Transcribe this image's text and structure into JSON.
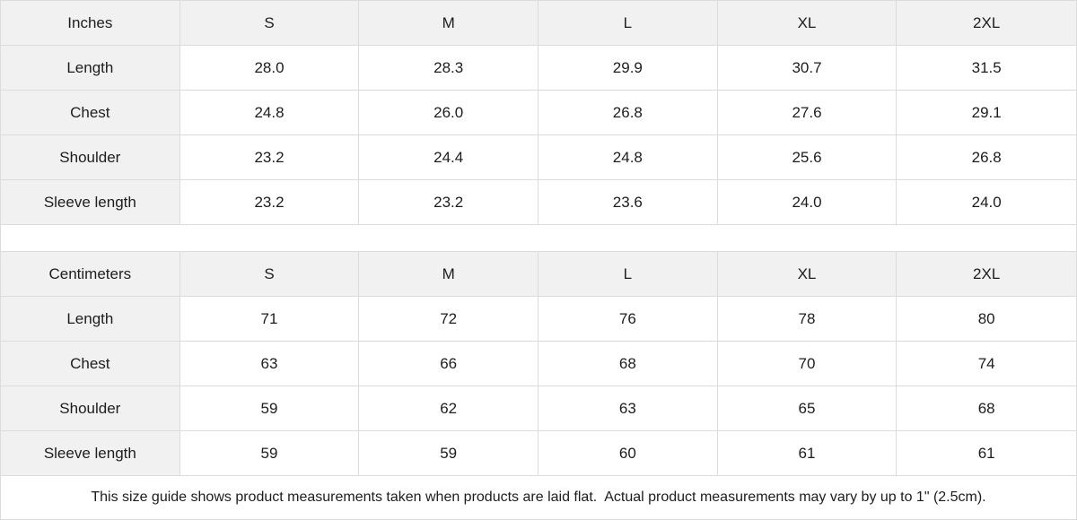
{
  "colors": {
    "header_bg": "#f1f1f1",
    "border": "#dcdcdc",
    "text": "#1d1d1f",
    "background": "#ffffff"
  },
  "tables": [
    {
      "unit_label": "Inches",
      "sizes": [
        "S",
        "M",
        "L",
        "XL",
        "2XL"
      ],
      "rows": [
        {
          "label": "Length",
          "values": [
            "28.0",
            "28.3",
            "29.9",
            "30.7",
            "31.5"
          ]
        },
        {
          "label": "Chest",
          "values": [
            "24.8",
            "26.0",
            "26.8",
            "27.6",
            "29.1"
          ]
        },
        {
          "label": "Shoulder",
          "values": [
            "23.2",
            "24.4",
            "24.8",
            "25.6",
            "26.8"
          ]
        },
        {
          "label": "Sleeve length",
          "values": [
            "23.2",
            "23.2",
            "23.6",
            "24.0",
            "24.0"
          ]
        }
      ]
    },
    {
      "unit_label": "Centimeters",
      "sizes": [
        "S",
        "M",
        "L",
        "XL",
        "2XL"
      ],
      "rows": [
        {
          "label": "Length",
          "values": [
            "71",
            "72",
            "76",
            "78",
            "80"
          ]
        },
        {
          "label": "Chest",
          "values": [
            "63",
            "66",
            "68",
            "70",
            "74"
          ]
        },
        {
          "label": "Shoulder",
          "values": [
            "59",
            "62",
            "63",
            "65",
            "68"
          ]
        },
        {
          "label": "Sleeve length",
          "values": [
            "59",
            "59",
            "60",
            "61",
            "61"
          ]
        }
      ]
    }
  ],
  "footer": {
    "note": "This size guide shows product measurements taken when products are laid flat.  Actual product measurements may vary by up to 1\" (2.5cm)."
  }
}
